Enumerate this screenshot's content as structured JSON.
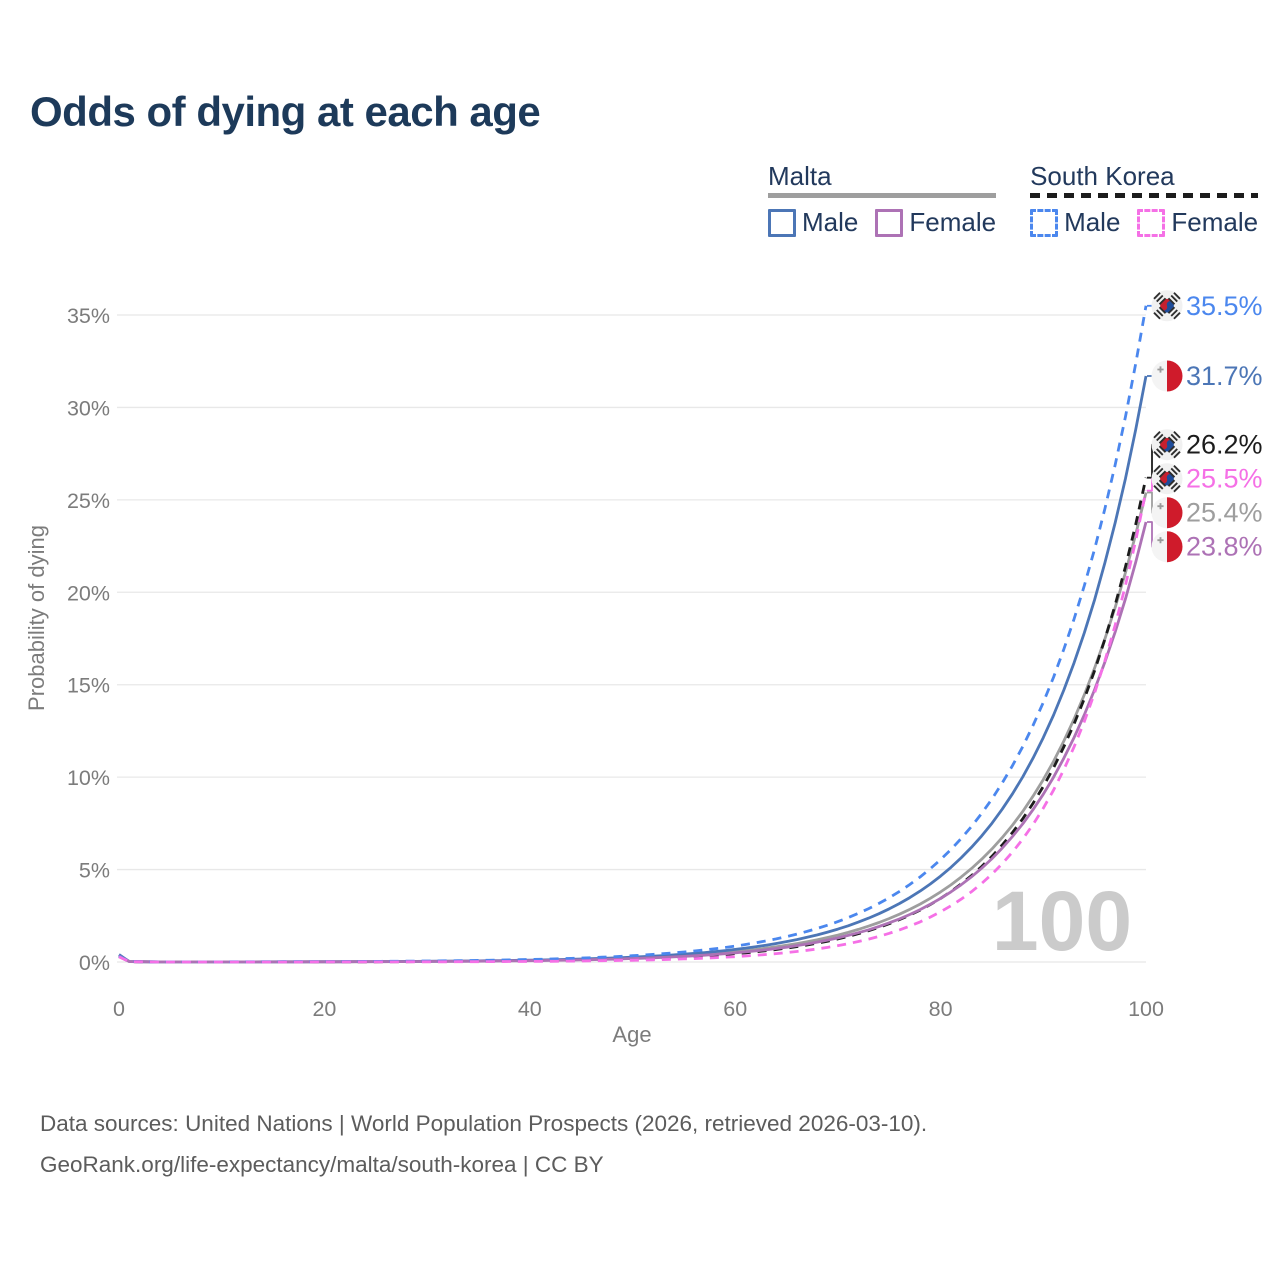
{
  "title": "Odds of dying at each age",
  "legend": {
    "groups": [
      {
        "name": "Malta",
        "line": "solid",
        "line_color": "#9e9e9e",
        "items": [
          {
            "label": "Male",
            "color": "#4c76b6",
            "line": "solid"
          },
          {
            "label": "Female",
            "color": "#ad72b5",
            "line": "solid"
          }
        ]
      },
      {
        "name": "South Korea",
        "line": "dashed",
        "line_color": "#1c1c1c",
        "items": [
          {
            "label": "Male",
            "color": "#4b87ee",
            "line": "dashed"
          },
          {
            "label": "Female",
            "color": "#f570e6",
            "line": "dashed"
          }
        ]
      }
    ]
  },
  "chart_data": {
    "type": "line",
    "title": "Odds of dying at each age",
    "xlabel": "Age",
    "ylabel": "Probability of dying",
    "xlim": [
      0,
      100
    ],
    "ylim": [
      0,
      36
    ],
    "x_ticks": [
      0,
      20,
      40,
      60,
      80,
      100
    ],
    "x_tick_labels": [
      "0",
      "20",
      "40",
      "60",
      "80",
      "100"
    ],
    "y_ticks": [
      0,
      5,
      10,
      15,
      20,
      25,
      30,
      35
    ],
    "y_tick_labels": [
      "0%",
      "5%",
      "10%",
      "15%",
      "20%",
      "25%",
      "30%",
      "35%"
    ],
    "grid": "horizontal",
    "legend_position": "top-right",
    "age_watermark": "100",
    "ages": [
      0,
      1,
      5,
      10,
      15,
      20,
      25,
      30,
      35,
      40,
      45,
      50,
      55,
      60,
      65,
      70,
      75,
      80,
      85,
      90,
      95,
      100
    ],
    "series": [
      {
        "id": "malta-total",
        "name": "Malta (both sexes)",
        "country": "Malta",
        "flag": "mt",
        "line": "solid",
        "color": "#9e9e9e",
        "label_color": "#9e9e9e",
        "end_label": "25.4%",
        "end_value": 25.4,
        "values": [
          0.37,
          0.026,
          0.003,
          0.005,
          0.008,
          0.012,
          0.02,
          0.032,
          0.051,
          0.083,
          0.133,
          0.215,
          0.347,
          0.56,
          0.903,
          1.457,
          2.351,
          3.792,
          6.116,
          9.868,
          15.916,
          25.4
        ]
      },
      {
        "id": "south-korea-total",
        "name": "South Korea (both sexes)",
        "country": "South Korea",
        "flag": "kr",
        "line": "dashed",
        "color": "#1c1c1c",
        "label_color": "#1c1c1c",
        "end_label": "26.2%",
        "end_value": 26.2,
        "values": [
          0.3,
          0.02,
          0.002,
          0.003,
          0.005,
          0.008,
          0.013,
          0.022,
          0.036,
          0.059,
          0.099,
          0.164,
          0.272,
          0.452,
          0.751,
          1.248,
          2.072,
          3.443,
          5.717,
          9.498,
          15.777,
          26.2
        ]
      },
      {
        "id": "malta-male",
        "name": "Malta Male",
        "country": "Malta",
        "flag": "mt",
        "line": "solid",
        "color": "#4c76b6",
        "label_color": "#4c76b6",
        "end_label": "31.7%",
        "end_value": 31.7,
        "values": [
          0.4,
          0.028,
          0.004,
          0.006,
          0.009,
          0.015,
          0.024,
          0.038,
          0.062,
          0.1,
          0.162,
          0.261,
          0.422,
          0.681,
          1.101,
          1.779,
          2.876,
          4.647,
          7.51,
          12.138,
          19.616,
          31.7
        ]
      },
      {
        "id": "malta-female",
        "name": "Malta Female",
        "country": "Malta",
        "flag": "mt",
        "line": "solid",
        "color": "#ad72b5",
        "label_color": "#ad72b5",
        "end_label": "23.8%",
        "end_value": 23.8,
        "values": [
          0.33,
          0.024,
          0.003,
          0.004,
          0.006,
          0.01,
          0.017,
          0.027,
          0.044,
          0.071,
          0.115,
          0.187,
          0.304,
          0.494,
          0.803,
          1.304,
          2.118,
          3.441,
          5.591,
          9.077,
          14.747,
          23.8
        ]
      },
      {
        "id": "south-korea-male",
        "name": "South Korea Male",
        "country": "South Korea",
        "flag": "kr",
        "line": "dashed",
        "color": "#4b87ee",
        "label_color": "#4b87ee",
        "end_label": "35.5%",
        "end_value": 35.5,
        "values": [
          0.32,
          0.022,
          0.005,
          0.008,
          0.013,
          0.021,
          0.033,
          0.053,
          0.084,
          0.134,
          0.214,
          0.34,
          0.542,
          0.862,
          1.374,
          2.187,
          3.479,
          5.542,
          8.822,
          14.043,
          22.358,
          35.5
        ]
      },
      {
        "id": "south-korea-female",
        "name": "South Korea Female",
        "country": "South Korea",
        "flag": "kr",
        "line": "dashed",
        "color": "#f570e6",
        "label_color": "#f570e6",
        "end_label": "25.5%",
        "end_value": 25.5,
        "values": [
          0.28,
          0.018,
          0.001,
          0.001,
          0.002,
          0.003,
          0.006,
          0.01,
          0.018,
          0.031,
          0.055,
          0.094,
          0.165,
          0.289,
          0.506,
          0.886,
          1.55,
          2.716,
          4.753,
          8.321,
          14.566,
          25.5
        ]
      }
    ]
  },
  "footer": {
    "line1": "Data sources: United Nations | World Population Prospects (2026, retrieved 2026-03-10).",
    "line2": "GeoRank.org/life-expectancy/malta/south-korea | CC BY"
  }
}
